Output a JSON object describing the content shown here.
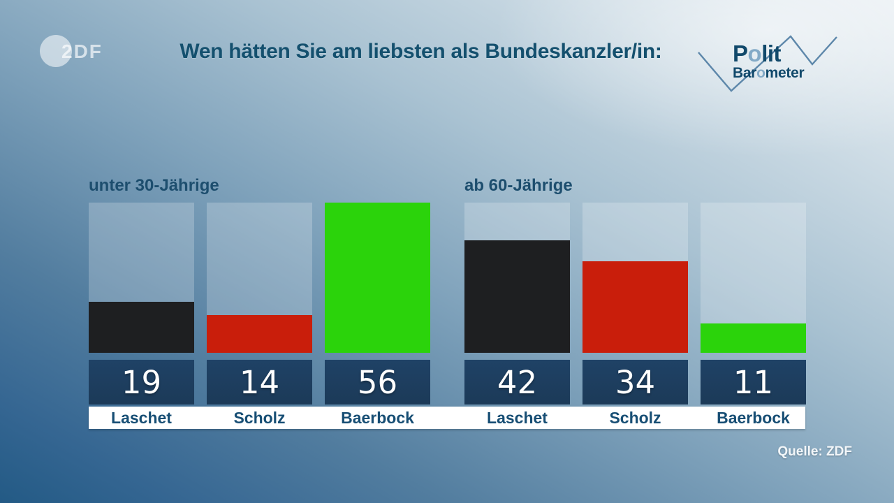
{
  "header": {
    "zdf_logo_text": "2DF",
    "title": "Wen hätten Sie am liebsten als Bundeskanzler/in:",
    "brand": {
      "polit_p": "P",
      "polit_o": "o",
      "polit_rest": "lit",
      "baro_pre": "Bar",
      "baro_o": "o",
      "baro_rest": "meter"
    }
  },
  "chart_data": {
    "type": "bar",
    "title": "Wen hätten Sie am liebsten als Bundeskanzler/in:",
    "unit": "percent",
    "scale_max": 56,
    "grid": false,
    "legend_position": "none",
    "groups": [
      {
        "label": "unter 30-Jährige",
        "bars": [
          {
            "name": "Laschet",
            "value": 19,
            "color": "#1e1f21"
          },
          {
            "name": "Scholz",
            "value": 14,
            "color": "#c91e0b"
          },
          {
            "name": "Baerbock",
            "value": 56,
            "color": "#2bd30b"
          }
        ]
      },
      {
        "label": "ab 60-Jährige",
        "bars": [
          {
            "name": "Laschet",
            "value": 42,
            "color": "#1e1f21"
          },
          {
            "name": "Scholz",
            "value": 34,
            "color": "#c91e0b"
          },
          {
            "name": "Baerbock",
            "value": 11,
            "color": "#2bd30b"
          }
        ]
      }
    ]
  },
  "footer": {
    "source": "Quelle: ZDF"
  },
  "colors": {
    "background_light": "#e9eff3",
    "background_dark": "#235a85",
    "title_text": "#14506e",
    "group_label_text": "#1d4e6e",
    "bar_track": "rgba(255,255,255,0.22)",
    "value_box": "#1d3c5c",
    "value_text": "#ffffff",
    "name_strip": "#ffffff",
    "name_text": "#174e74",
    "brand_dark": "#11496b",
    "brand_light": "#83aac7",
    "zigzag_line": "#5d87aa"
  }
}
